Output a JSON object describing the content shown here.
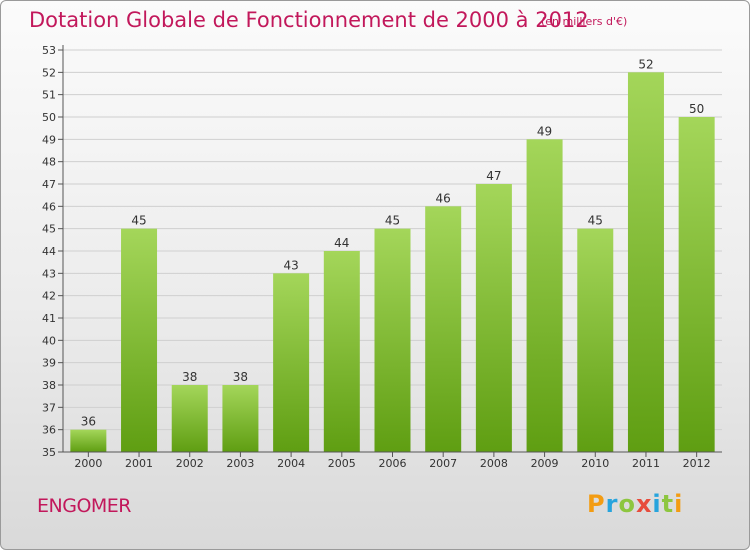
{
  "header": {
    "title": "Dotation Globale de Fonctionnement de 2000 à 2012",
    "unit_note": "(en milliers d'€)"
  },
  "footer": {
    "commune": "ENGOMER",
    "logo_text": "Proxiti",
    "logo_colors": [
      "#f39c12",
      "#27a4dd",
      "#8dc63f",
      "#e74c3c",
      "#27a4dd",
      "#8dc63f",
      "#f39c12"
    ]
  },
  "colors": {
    "accent": "#c2185b",
    "bar_top": "#a4d65a",
    "bar_bottom": "#5f9e12",
    "grid": "#cfcfcf"
  },
  "chart_data": {
    "type": "bar",
    "title": "Dotation Globale de Fonctionnement de 2000 à 2012",
    "subtitle": "(en milliers d'€)",
    "categories": [
      "2000",
      "2001",
      "2002",
      "2003",
      "2004",
      "2005",
      "2006",
      "2007",
      "2008",
      "2009",
      "2010",
      "2011",
      "2012"
    ],
    "values": [
      36,
      45,
      38,
      38,
      43,
      44,
      45,
      46,
      47,
      49,
      45,
      52,
      50
    ],
    "ylim": [
      35,
      53
    ],
    "yticks": [
      35,
      36,
      37,
      38,
      39,
      40,
      41,
      42,
      43,
      44,
      45,
      46,
      47,
      48,
      49,
      50,
      51,
      52,
      53
    ],
    "grid": true,
    "data_labels": true,
    "xlabel": "",
    "ylabel": ""
  }
}
